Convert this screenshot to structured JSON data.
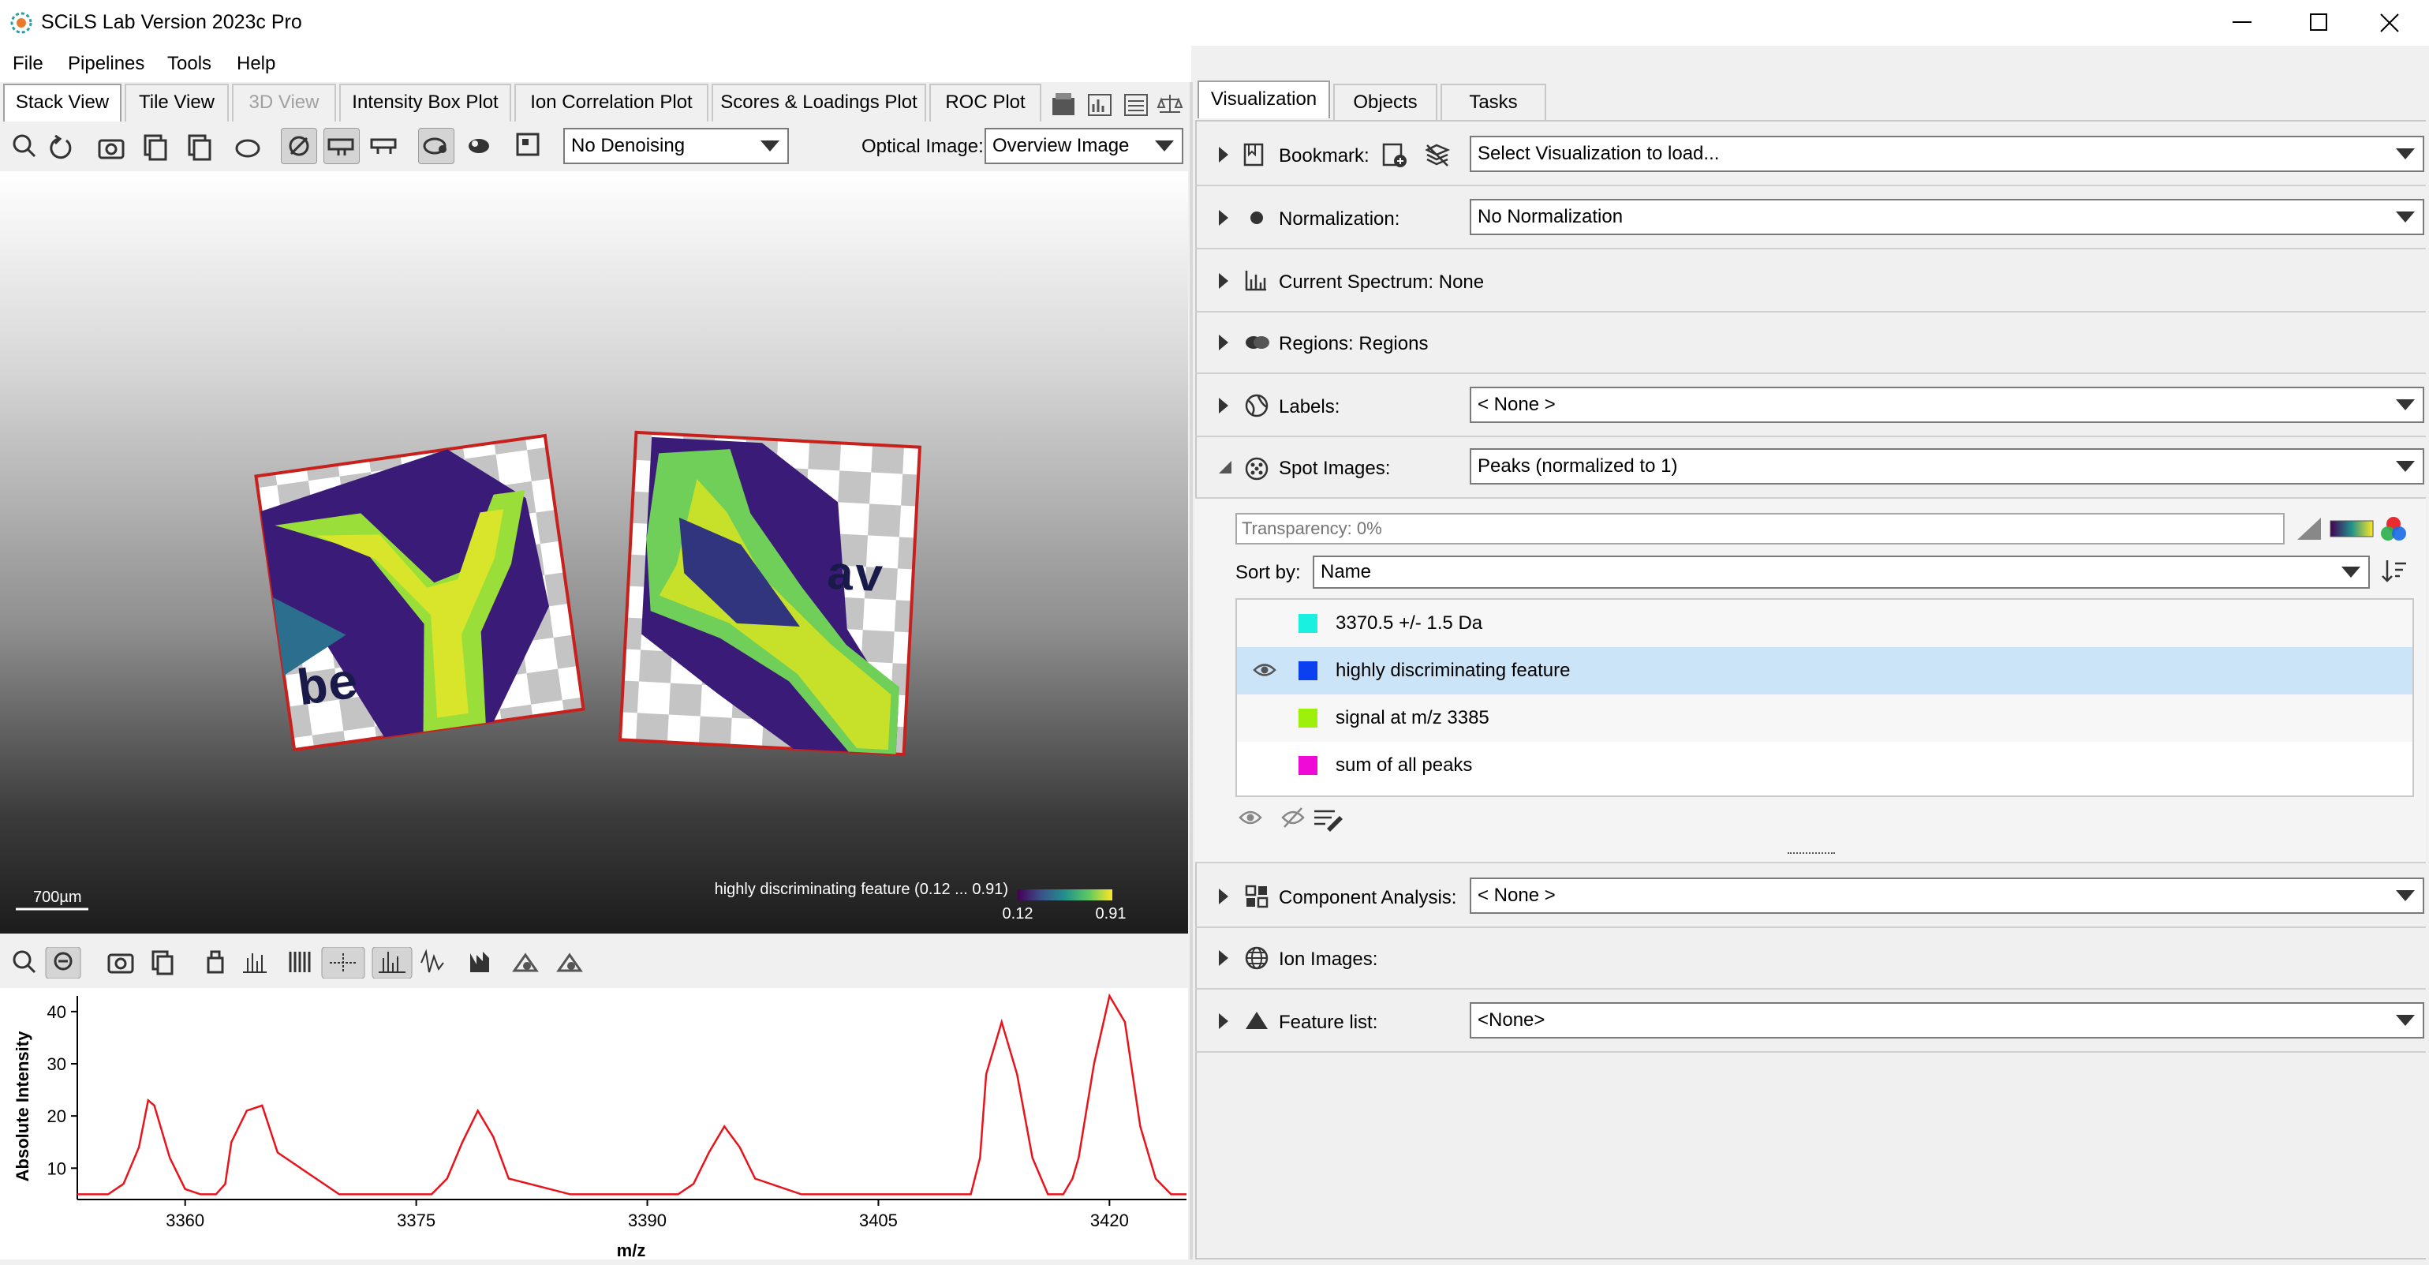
{
  "app": {
    "title": "SCiLS Lab Version 2023c Pro"
  },
  "menu": [
    "File",
    "Pipelines",
    "Tools",
    "Help"
  ],
  "view_tabs": [
    {
      "label": "Stack View",
      "active": true
    },
    {
      "label": "Tile View"
    },
    {
      "label": "3D View",
      "disabled": true
    },
    {
      "label": "Intensity Box Plot"
    },
    {
      "label": "Ion Correlation Plot"
    },
    {
      "label": "Scores & Loadings Plot"
    },
    {
      "label": "ROC Plot"
    }
  ],
  "toolbar": {
    "denoising": "No Denoising",
    "optical_label": "Optical Image:",
    "optical_value": "Overview Image"
  },
  "viewer": {
    "scalebar": "700µm",
    "colorbar_label": "highly discriminating feature (0.12 ... 0.91)",
    "colorbar_min": "0.12",
    "colorbar_max": "0.91",
    "overlay_text_1": "be",
    "overlay_text_2": "av"
  },
  "chart_data": {
    "type": "line",
    "xlabel": "m/z",
    "ylabel": "Absolute Intensity",
    "xlim": [
      3353,
      3425
    ],
    "ylim": [
      4,
      43
    ],
    "xticks": [
      3360,
      3375,
      3390,
      3405,
      3420
    ],
    "yticks": [
      10,
      20,
      30,
      40
    ],
    "series": [
      {
        "color": "#e8141c",
        "x": [
          3353,
          3355,
          3356,
          3357,
          3357.6,
          3358,
          3359,
          3360,
          3361,
          3362,
          3362.6,
          3363,
          3364,
          3365,
          3366,
          3370,
          3375,
          3376,
          3377,
          3378,
          3379,
          3380,
          3381,
          3385,
          3390,
          3391,
          3392,
          3393,
          3394,
          3395,
          3396,
          3397,
          3400,
          3405,
          3406,
          3407,
          3408,
          3409,
          3410,
          3411,
          3411.6,
          3412,
          3413,
          3414,
          3415,
          3416,
          3417,
          3417.6,
          3418,
          3419,
          3420,
          3421,
          3422,
          3423,
          3424,
          3425
        ],
        "y": [
          5,
          5,
          7,
          14,
          23,
          22,
          12,
          6,
          5,
          5,
          7,
          15,
          21,
          22,
          13,
          5,
          5,
          5,
          8,
          15,
          21,
          16,
          8,
          5,
          5,
          5,
          5,
          7,
          13,
          18,
          14,
          8,
          5,
          5,
          5,
          5,
          5,
          5,
          5,
          5,
          12,
          28,
          38,
          28,
          12,
          5,
          5,
          8,
          12,
          30,
          43,
          38,
          18,
          8,
          5,
          5
        ]
      }
    ]
  },
  "right_tabs": [
    {
      "label": "Visualization",
      "active": true
    },
    {
      "label": "Objects"
    },
    {
      "label": "Tasks"
    }
  ],
  "panel": {
    "bookmark_label": "Bookmark:",
    "bookmark_value": "Select Visualization to load...",
    "normalization_label": "Normalization:",
    "normalization_value": "No Normalization",
    "current_spectrum": "Current Spectrum: None",
    "regions": "Regions: Regions",
    "labels_label": "Labels:",
    "labels_value": "< None >",
    "spot_images_label": "Spot Images:",
    "spot_images_value": "Peaks (normalized to 1)",
    "transparency_placeholder": "Transparency: 0%",
    "sort_label": "Sort by:",
    "sort_value": "Name",
    "items": [
      {
        "label": "3370.5 +/- 1.5 Da",
        "color": "#19f0e0"
      },
      {
        "label": "highly discriminating feature",
        "color": "#0a40f0",
        "selected": true
      },
      {
        "label": "signal at m/z 3385",
        "color": "#9cf00a"
      },
      {
        "label": "sum of all peaks",
        "color": "#f00ad8"
      }
    ],
    "component_label": "Component Analysis:",
    "component_value": "< None >",
    "ion_images": "Ion Images:",
    "feature_label": "Feature list:",
    "feature_value": "<None>"
  }
}
